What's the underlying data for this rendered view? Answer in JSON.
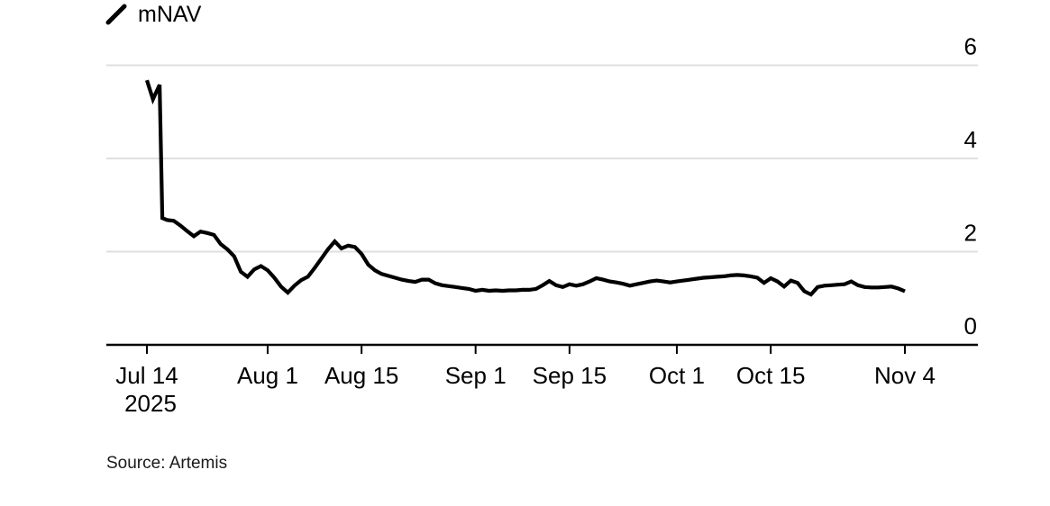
{
  "legend": {
    "label": "mNAV"
  },
  "footer": {
    "source": "Source: Artemis"
  },
  "colors": {
    "background": "#ffffff",
    "line": "#000000",
    "grid": "#dfdfdf",
    "axis": "#000000",
    "text": "#000000"
  },
  "chart_data": {
    "type": "line",
    "title": "",
    "legend_position": "top-left",
    "grid": "horizontal-only",
    "x_axis": {
      "unit": "date",
      "range_days": [
        0,
        113
      ],
      "ticks": [
        {
          "label": "Jul 14",
          "label2": "2025",
          "day": 0
        },
        {
          "label": "Aug 1",
          "day": 18
        },
        {
          "label": "Aug 15",
          "day": 32
        },
        {
          "label": "Sep 1",
          "day": 49
        },
        {
          "label": "Sep 15",
          "day": 63
        },
        {
          "label": "Oct 1",
          "day": 79
        },
        {
          "label": "Oct 15",
          "day": 93
        },
        {
          "label": "Nov 4",
          "day": 113
        }
      ]
    },
    "y_axis": {
      "side": "right",
      "lim": [
        0,
        6
      ],
      "ticks": [
        0,
        2,
        4,
        6
      ],
      "grid_values": [
        2,
        4,
        6
      ]
    },
    "series": [
      {
        "name": "mNAV",
        "color": "#000000",
        "points": [
          [
            0,
            5.68
          ],
          [
            0.9,
            5.27
          ],
          [
            1.9,
            5.58
          ],
          [
            2.3,
            2.72
          ],
          [
            3,
            2.68
          ],
          [
            4,
            2.66
          ],
          [
            5,
            2.56
          ],
          [
            6,
            2.44
          ],
          [
            7,
            2.33
          ],
          [
            8,
            2.43
          ],
          [
            9,
            2.4
          ],
          [
            10,
            2.36
          ],
          [
            11,
            2.16
          ],
          [
            12,
            2.05
          ],
          [
            13,
            1.9
          ],
          [
            14,
            1.57
          ],
          [
            15,
            1.46
          ],
          [
            16,
            1.62
          ],
          [
            17,
            1.69
          ],
          [
            18,
            1.6
          ],
          [
            19,
            1.44
          ],
          [
            20,
            1.25
          ],
          [
            21,
            1.12
          ],
          [
            22,
            1.27
          ],
          [
            23,
            1.39
          ],
          [
            24,
            1.46
          ],
          [
            25,
            1.65
          ],
          [
            26,
            1.85
          ],
          [
            27,
            2.05
          ],
          [
            28,
            2.22
          ],
          [
            29,
            2.07
          ],
          [
            30,
            2.13
          ],
          [
            31,
            2.1
          ],
          [
            32,
            1.95
          ],
          [
            33,
            1.72
          ],
          [
            34,
            1.6
          ],
          [
            35,
            1.52
          ],
          [
            36,
            1.48
          ],
          [
            37,
            1.44
          ],
          [
            38,
            1.4
          ],
          [
            39,
            1.37
          ],
          [
            40,
            1.35
          ],
          [
            41,
            1.4
          ],
          [
            42,
            1.4
          ],
          [
            43,
            1.32
          ],
          [
            44,
            1.28
          ],
          [
            45,
            1.26
          ],
          [
            46,
            1.24
          ],
          [
            47,
            1.22
          ],
          [
            48,
            1.2
          ],
          [
            49,
            1.16
          ],
          [
            50,
            1.18
          ],
          [
            51,
            1.16
          ],
          [
            52,
            1.17
          ],
          [
            53,
            1.16
          ],
          [
            54,
            1.17
          ],
          [
            55,
            1.17
          ],
          [
            56,
            1.18
          ],
          [
            57,
            1.18
          ],
          [
            58,
            1.2
          ],
          [
            59,
            1.28
          ],
          [
            60,
            1.37
          ],
          [
            61,
            1.28
          ],
          [
            62,
            1.24
          ],
          [
            63,
            1.3
          ],
          [
            64,
            1.27
          ],
          [
            65,
            1.3
          ],
          [
            66,
            1.36
          ],
          [
            67,
            1.43
          ],
          [
            68,
            1.4
          ],
          [
            69,
            1.36
          ],
          [
            70,
            1.34
          ],
          [
            71,
            1.31
          ],
          [
            72,
            1.27
          ],
          [
            73,
            1.3
          ],
          [
            74,
            1.33
          ],
          [
            75,
            1.36
          ],
          [
            76,
            1.38
          ],
          [
            77,
            1.36
          ],
          [
            78,
            1.34
          ],
          [
            79,
            1.36
          ],
          [
            80,
            1.38
          ],
          [
            81,
            1.4
          ],
          [
            82,
            1.42
          ],
          [
            83,
            1.44
          ],
          [
            84,
            1.45
          ],
          [
            85,
            1.46
          ],
          [
            86,
            1.47
          ],
          [
            87,
            1.49
          ],
          [
            88,
            1.5
          ],
          [
            89,
            1.49
          ],
          [
            90,
            1.47
          ],
          [
            91,
            1.44
          ],
          [
            92,
            1.33
          ],
          [
            93,
            1.43
          ],
          [
            94,
            1.36
          ],
          [
            95,
            1.25
          ],
          [
            96,
            1.38
          ],
          [
            97,
            1.33
          ],
          [
            98,
            1.15
          ],
          [
            99,
            1.08
          ],
          [
            100,
            1.24
          ],
          [
            101,
            1.27
          ],
          [
            102,
            1.28
          ],
          [
            103,
            1.29
          ],
          [
            104,
            1.3
          ],
          [
            105,
            1.36
          ],
          [
            106,
            1.28
          ],
          [
            107,
            1.24
          ],
          [
            108,
            1.23
          ],
          [
            109,
            1.23
          ],
          [
            110,
            1.24
          ],
          [
            111,
            1.25
          ],
          [
            112,
            1.21
          ],
          [
            113,
            1.15
          ]
        ]
      }
    ],
    "source": "Source: Artemis"
  }
}
